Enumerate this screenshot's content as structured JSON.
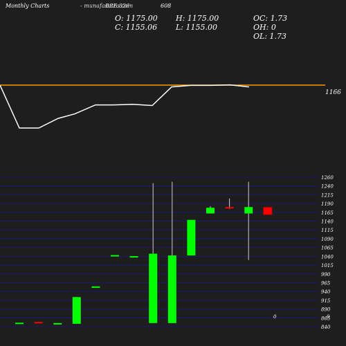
{
  "header": {
    "title": "Monthly Charts",
    "source": "- munafasutra.com",
    "exchange_code": "BSE 826",
    "symbol": "608"
  },
  "ohlc": {
    "open": "O: 1175.00",
    "high": "H: 1175.00",
    "oc": "OC: 1.73",
    "close": "C: 1155.06",
    "low": "L: 1155.00",
    "oh": "OH: 0",
    "ol": "OL: 1.73"
  },
  "colors": {
    "background": "#1e1e1e",
    "up": "#00ff00",
    "down": "#ff0000",
    "price_line": "#ff9900",
    "line": "#ffffff",
    "grid": "#1a1a8c"
  },
  "chart_data": [
    {
      "type": "line",
      "label": "1166",
      "level_value": 1166,
      "line_values": [
        1166,
        1023,
        1023,
        1055,
        1070,
        1100,
        1100,
        1102,
        1098,
        1160,
        1165,
        1165,
        1167,
        1160
      ],
      "note": "Price line (upper panel). Values estimated relative to the marked level of 1166."
    },
    {
      "type": "candlestick",
      "ylim": [
        840,
        1260
      ],
      "y_tick_labels": [
        "1260",
        "1240",
        "1215",
        "1190",
        "1165",
        "1140",
        "1115",
        "1090",
        "1065",
        "1040",
        "1015",
        "990",
        "965",
        "940",
        "915",
        "890",
        "865",
        "840"
      ],
      "x_tick_labels": [
        "0",
        "0"
      ],
      "candles": [
        {
          "open": 851,
          "high": 851,
          "low": 850,
          "close": 851,
          "direction": "up"
        },
        {
          "open": 853,
          "high": 853,
          "low": 850,
          "close": 850,
          "direction": "down"
        },
        {
          "open": 850,
          "high": 850,
          "low": 850,
          "close": 850,
          "direction": "up"
        },
        {
          "open": 848,
          "high": 923,
          "low": 848,
          "close": 923,
          "direction": "up"
        },
        {
          "open": 953,
          "high": 953,
          "low": 952,
          "close": 953,
          "direction": "up"
        },
        {
          "open": 1041,
          "high": 1041,
          "low": 1040,
          "close": 1041,
          "direction": "up"
        },
        {
          "open": 1038,
          "high": 1038,
          "low": 1037,
          "close": 1038,
          "direction": "up"
        },
        {
          "open": 850,
          "high": 1243,
          "low": 850,
          "close": 1045,
          "direction": "up"
        },
        {
          "open": 850,
          "high": 1247,
          "low": 850,
          "close": 1040,
          "direction": "up"
        },
        {
          "open": 1040,
          "high": 1140,
          "low": 1040,
          "close": 1140,
          "direction": "up"
        },
        {
          "open": 1158,
          "high": 1178,
          "low": 1158,
          "close": 1174,
          "direction": "up"
        },
        {
          "open": 1176,
          "high": 1200,
          "low": 1171,
          "close": 1172,
          "direction": "down"
        },
        {
          "open": 1158,
          "high": 1247,
          "low": 1027,
          "close": 1176,
          "direction": "up"
        },
        {
          "open": 1175,
          "high": 1175,
          "low": 1155,
          "close": 1155,
          "direction": "down"
        }
      ]
    }
  ]
}
